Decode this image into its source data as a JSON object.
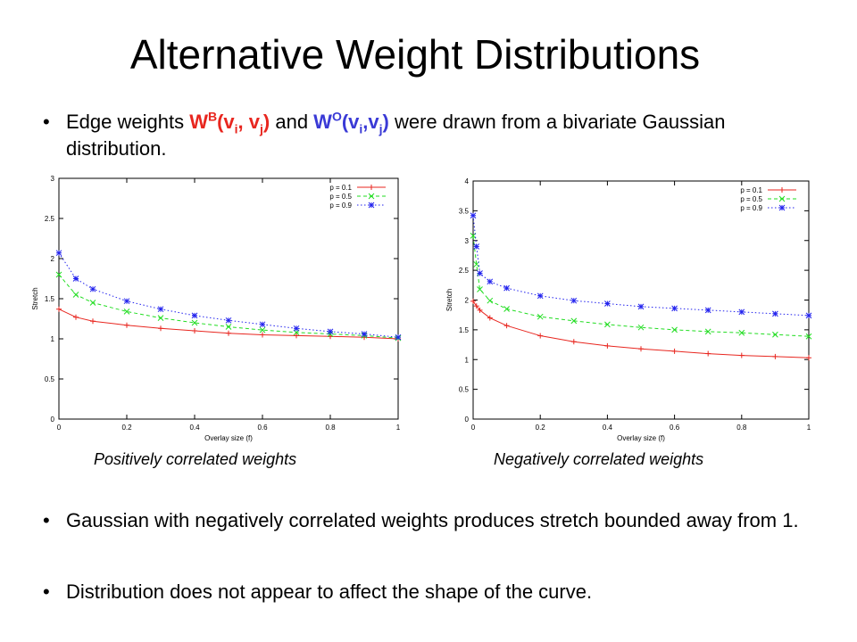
{
  "slide": {
    "title": "Alternative Weight Distributions",
    "bullet1": {
      "pre": "Edge weights ",
      "wb": "W",
      "wb_sup": "B",
      "wb_args_open": "(v",
      "wb_sub_i": "i",
      "wb_comma": ", v",
      "wb_sub_j": "j",
      "wb_close": ")",
      "mid": " and ",
      "wo": "W",
      "wo_sup": "O",
      "wo_args_open": "(v",
      "wo_sub_i": "i",
      "wo_comma": ",v",
      "wo_sub_j": "j",
      "wo_close": ")",
      "post": " were drawn from a bivariate Gaussian distribution."
    },
    "bullet2": "Gaussian with negatively correlated weights produces stretch bounded away from 1.",
    "bullet3": "Distribution does not appear to affect the shape of the curve.",
    "bullet_char": "•",
    "caption_left": "Positively correlated weights",
    "caption_right": "Negatively correlated weights",
    "colors": {
      "red": "#e8261f",
      "blue": "#3a3ad6"
    }
  },
  "chart_data": [
    {
      "type": "line",
      "xlabel": "Overlay size (f)",
      "ylabel": "Stretch",
      "xlim": [
        0,
        1
      ],
      "ylim": [
        0,
        3
      ],
      "xticks": [
        0,
        0.2,
        0.4,
        0.6,
        0.8,
        1
      ],
      "yticks": [
        0,
        0.5,
        1,
        1.5,
        2,
        2.5,
        3
      ],
      "legend": "top-right",
      "x": [
        0,
        0.05,
        0.1,
        0.2,
        0.3,
        0.4,
        0.5,
        0.6,
        0.7,
        0.8,
        0.9,
        1
      ],
      "series": [
        {
          "name": "p = 0.1",
          "color": "#e8261f",
          "marker": "plus",
          "dash": "solid",
          "values": [
            1.37,
            1.27,
            1.22,
            1.17,
            1.13,
            1.1,
            1.07,
            1.05,
            1.04,
            1.03,
            1.02,
            1.0
          ]
        },
        {
          "name": "p = 0.5",
          "color": "#22dd22",
          "marker": "x",
          "dash": "dashed",
          "values": [
            1.8,
            1.55,
            1.45,
            1.34,
            1.26,
            1.2,
            1.15,
            1.11,
            1.08,
            1.06,
            1.04,
            1.01
          ]
        },
        {
          "name": "p = 0.9",
          "color": "#2222ee",
          "marker": "star",
          "dash": "dotted",
          "values": [
            2.07,
            1.75,
            1.62,
            1.47,
            1.37,
            1.29,
            1.23,
            1.18,
            1.13,
            1.09,
            1.06,
            1.02
          ]
        }
      ]
    },
    {
      "type": "line",
      "xlabel": "Overlay size (f)",
      "ylabel": "Stretch",
      "xlim": [
        0,
        1
      ],
      "ylim": [
        0,
        4
      ],
      "xticks": [
        0,
        0.2,
        0.4,
        0.6,
        0.8,
        1
      ],
      "yticks": [
        0,
        0.5,
        1,
        1.5,
        2,
        2.5,
        3,
        3.5,
        4
      ],
      "legend": "top-right",
      "x": [
        0,
        0.01,
        0.02,
        0.05,
        0.1,
        0.2,
        0.3,
        0.4,
        0.5,
        0.6,
        0.7,
        0.8,
        0.9,
        1
      ],
      "series": [
        {
          "name": "p = 0.1",
          "color": "#e8261f",
          "marker": "plus",
          "dash": "solid",
          "values": [
            1.98,
            1.9,
            1.83,
            1.7,
            1.57,
            1.4,
            1.3,
            1.23,
            1.18,
            1.14,
            1.1,
            1.07,
            1.05,
            1.03
          ]
        },
        {
          "name": "p = 0.5",
          "color": "#22dd22",
          "marker": "x",
          "dash": "dashed",
          "values": [
            3.08,
            2.6,
            2.18,
            1.99,
            1.85,
            1.72,
            1.65,
            1.59,
            1.54,
            1.5,
            1.47,
            1.45,
            1.42,
            1.39
          ]
        },
        {
          "name": "p = 0.9",
          "color": "#2222ee",
          "marker": "star",
          "dash": "dotted",
          "values": [
            3.42,
            2.9,
            2.45,
            2.31,
            2.2,
            2.07,
            1.99,
            1.94,
            1.89,
            1.86,
            1.83,
            1.8,
            1.77,
            1.74
          ]
        }
      ]
    }
  ]
}
